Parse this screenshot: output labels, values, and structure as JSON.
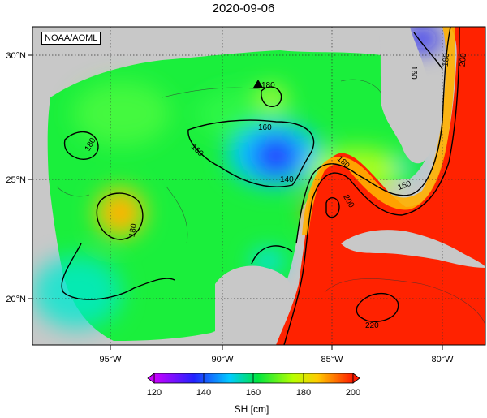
{
  "title": "2020-09-06",
  "credit": "NOAA/AOML",
  "lat_ticks": [
    {
      "value": 30,
      "label": "30°N"
    },
    {
      "value": 25,
      "label": "25°N"
    },
    {
      "value": 20,
      "label": "20°N"
    }
  ],
  "lon_ticks": [
    {
      "value": -95,
      "label": "95°W"
    },
    {
      "value": -90,
      "label": "90°W"
    },
    {
      "value": -85,
      "label": "85°W"
    },
    {
      "value": -80,
      "label": "80°W"
    }
  ],
  "contour_labels": [
    "180",
    "160",
    "160",
    "180",
    "180",
    "160",
    "140",
    "200",
    "180",
    "160",
    "220",
    "180",
    "200"
  ],
  "colorbar": {
    "label": "SH [cm]",
    "ticks": [
      "120",
      "140",
      "160",
      "180",
      "200"
    ],
    "min": 120,
    "max": 200
  },
  "colors": {
    "land": "#c8c8c8",
    "low": "#cc00ff",
    "mid": "#00e640",
    "high": "#ff1a00"
  }
}
